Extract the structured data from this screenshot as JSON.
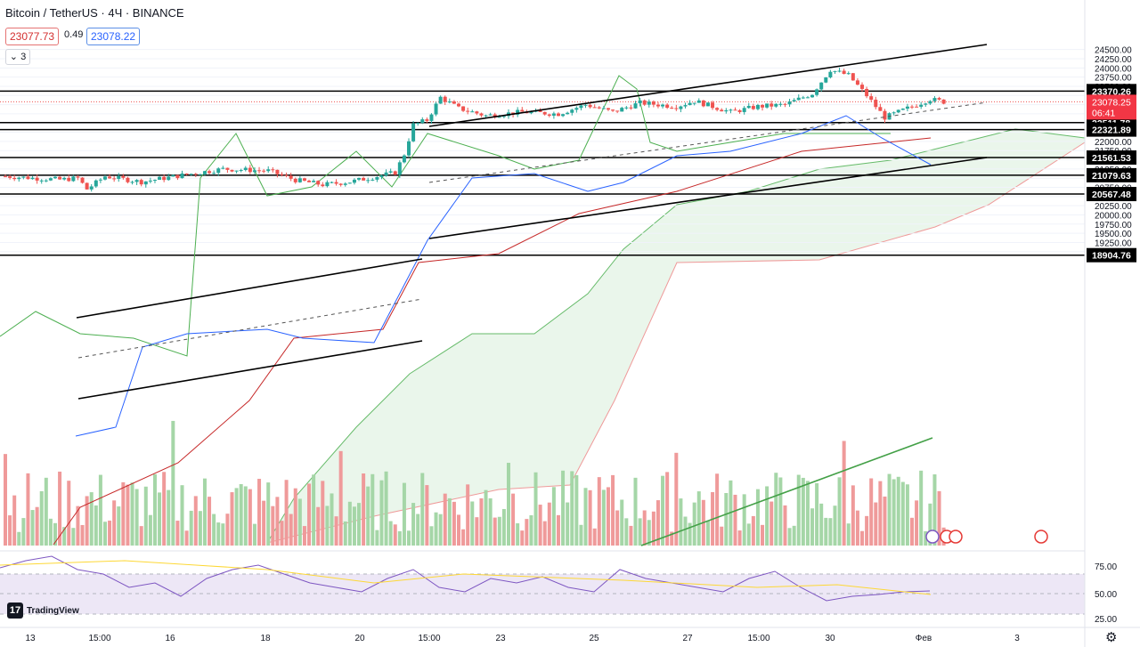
{
  "header": {
    "symbol": "Bitcoin / TetherUS · 4Ч · BINANCE",
    "sell_price": "23077.73",
    "spread": "0.49",
    "buy_price": "23078.22",
    "collapse_label": "3"
  },
  "branding": {
    "logo_text": "TradingView",
    "logo_mark": "17"
  },
  "icons": {
    "settings": "gear-icon",
    "chevron": "chevron-down-icon"
  },
  "colors": {
    "up": "#26a69a",
    "down": "#ef5350",
    "cloud": "#e8f5e9",
    "rsi_band": "#ede7f6",
    "rsi_line": "#7e57c2",
    "rsi_ma": "#fdd835"
  },
  "chart_data": {
    "type": "candlestick",
    "symbol": "BTCUSDT",
    "timeframe": "4H",
    "exchange": "BINANCE",
    "y_axis_labels": [
      "24500.00",
      "24250.00",
      "24000.00",
      "23750.00",
      "23500.00",
      "23250.00",
      "23000.00",
      "22750.00",
      "22500.00",
      "22250.00",
      "22000.00",
      "21750.00",
      "21500.00",
      "21250.00",
      "21000.00",
      "20750.00",
      "20500.00",
      "20250.00",
      "20000.00",
      "19750.00",
      "19500.00",
      "19250.00",
      "19000.00"
    ],
    "ylim": [
      18880,
      24600
    ],
    "x_axis_labels": [
      {
        "label": "13",
        "px": 34
      },
      {
        "label": "15:00",
        "px": 112
      },
      {
        "label": "16",
        "px": 191
      },
      {
        "label": "18",
        "px": 298
      },
      {
        "label": "20",
        "px": 404
      },
      {
        "label": "15:00",
        "px": 482
      },
      {
        "label": "23",
        "px": 562
      },
      {
        "label": "25",
        "px": 667
      },
      {
        "label": "27",
        "px": 772
      },
      {
        "label": "15:00",
        "px": 852
      },
      {
        "label": "30",
        "px": 932
      },
      {
        "label": "Фев",
        "px": 1037
      },
      {
        "label": "3",
        "px": 1142
      }
    ],
    "horizontal_levels": [
      {
        "value": 23370.26,
        "label": "23370.26"
      },
      {
        "value": 22511.78,
        "label": "22511.78"
      },
      {
        "value": 22321.89,
        "label": "22321.89"
      },
      {
        "value": 21561.53,
        "label": "21561.53"
      },
      {
        "value": 21079.63,
        "label": "21079.63"
      },
      {
        "value": 20567.48,
        "label": "20567.48"
      },
      {
        "value": 18904.76,
        "label": "18904.76"
      }
    ],
    "current_price": {
      "value": 23078.25,
      "label": "23078.25",
      "countdown": "06:41"
    },
    "candles": [
      [
        21084,
        21140,
        20900,
        20920
      ],
      [
        20920,
        21020,
        20820,
        20900
      ],
      [
        20900,
        20980,
        20800,
        20850
      ],
      [
        20850,
        21200,
        20750,
        21180
      ],
      [
        21180,
        21280,
        20700,
        21250
      ]
    ],
    "rsi": {
      "axis_labels": [
        "75.00",
        "50.00",
        "25.00"
      ],
      "upper": 70,
      "lower": 30,
      "mid": 50
    }
  }
}
